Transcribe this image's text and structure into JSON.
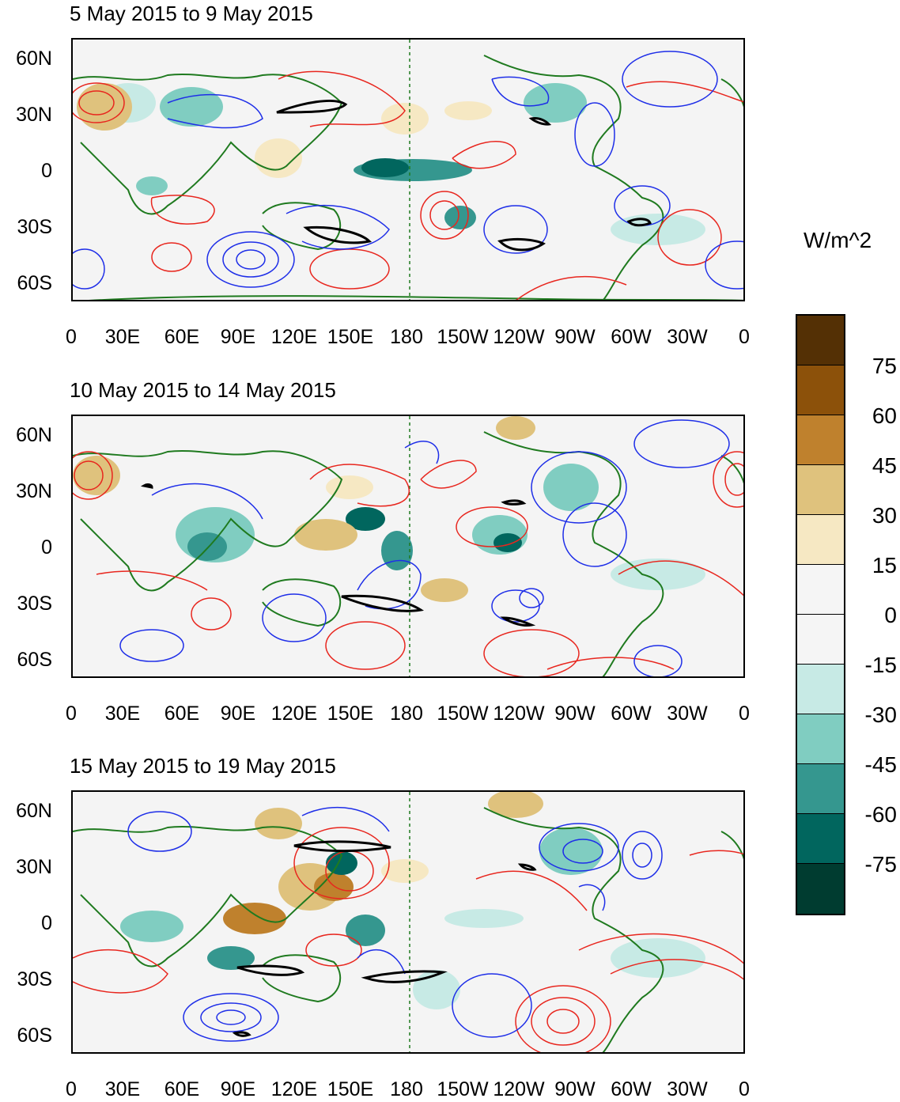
{
  "panels": [
    {
      "title": "5 May 2015 to 9 May 2015"
    },
    {
      "title": "10 May 2015 to 14 May 2015"
    },
    {
      "title": "15 May 2015 to 19 May 2015"
    }
  ],
  "axes": {
    "lat_labels": [
      "60N",
      "30N",
      "0",
      "30S",
      "60S"
    ],
    "lon_labels": [
      "0",
      "30E",
      "60E",
      "90E",
      "120E",
      "150E",
      "180",
      "150W",
      "120W",
      "90W",
      "60W",
      "30W",
      "0"
    ]
  },
  "colorbar": {
    "unit": "W/m^2",
    "labels": [
      "75",
      "60",
      "45",
      "30",
      "15",
      "0",
      "-15",
      "-30",
      "-45",
      "-60",
      "-75"
    ],
    "colors": [
      "#543005",
      "#8c510a",
      "#bf812d",
      "#dfc27d",
      "#f6e8c3",
      "#f5f5f5",
      "#f5f5f5",
      "#c7eae5",
      "#80cdc1",
      "#35978f",
      "#01665e",
      "#003c30"
    ]
  },
  "colors": {
    "positive_contour": "#e8261e",
    "negative_contour": "#1e2ee8",
    "threshold_contour": "#000000",
    "coast": "#1f7a1f"
  }
}
